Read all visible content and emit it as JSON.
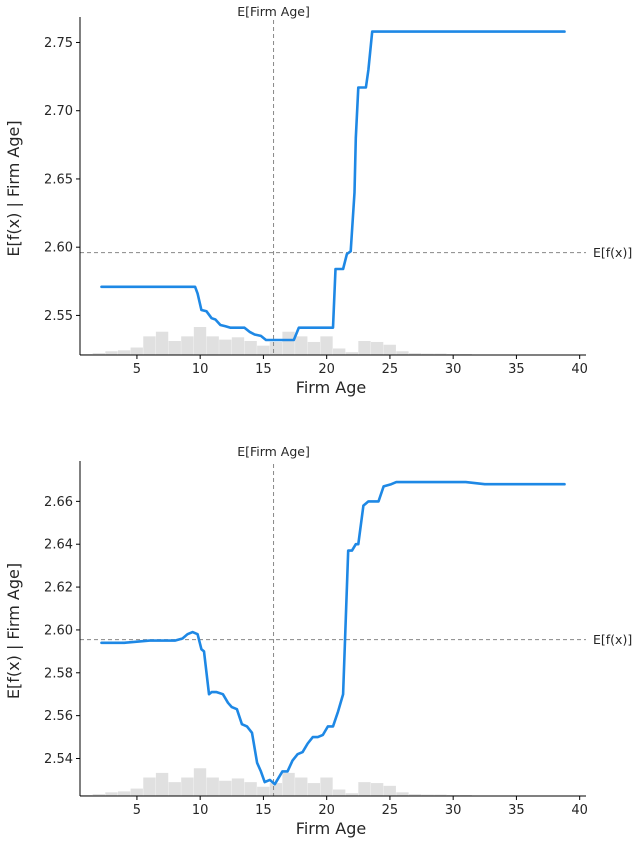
{
  "chart_data": [
    {
      "type": "line",
      "title": "",
      "xlabel": "Firm Age",
      "ylabel": "E[f(x) | Firm Age]",
      "xlim": [
        0.5,
        40.5
      ],
      "ylim": [
        2.521,
        2.765
      ],
      "x_ticks": [
        5,
        10,
        15,
        20,
        25,
        30,
        35,
        40
      ],
      "y_ticks": [
        2.55,
        2.6,
        2.65,
        2.7,
        2.75
      ],
      "y_tick_labels": [
        "2.55",
        "2.60",
        "2.65",
        "2.70",
        "2.75"
      ],
      "expected_x": 15.8,
      "expected_x_label": "E[Firm Age]",
      "expected_y": 2.596,
      "expected_y_label": "E[f(x)]",
      "colors": {
        "line": "#1e88e5",
        "hist": "#e0e0e0",
        "reference": "#888888"
      },
      "series": [
        {
          "x": [
            2.2,
            6,
            9.6,
            9.8,
            10.1,
            10.5,
            10.9,
            11.2,
            11.6,
            12,
            12.4,
            12.8,
            13.2,
            13.5,
            13.9,
            14.3,
            14.8,
            15.2,
            15.6,
            16,
            16.5,
            17,
            17.4,
            17.8,
            18.2,
            18.6,
            19,
            19.4,
            19.8,
            20.2,
            20.5,
            20.7,
            21,
            21.3,
            21.6,
            21.9,
            22.2,
            22.3,
            22.5,
            22.7,
            23.1,
            23.3,
            23.6,
            24.5,
            27,
            30,
            33,
            36,
            38.8
          ],
          "y": [
            2.571,
            2.571,
            2.571,
            2.566,
            2.554,
            2.553,
            2.548,
            2.547,
            2.543,
            2.542,
            2.541,
            2.541,
            2.541,
            2.541,
            2.538,
            2.536,
            2.535,
            2.532,
            2.532,
            2.532,
            2.532,
            2.532,
            2.532,
            2.541,
            2.541,
            2.541,
            2.541,
            2.541,
            2.541,
            2.541,
            2.541,
            2.584,
            2.584,
            2.584,
            2.595,
            2.597,
            2.64,
            2.68,
            2.717,
            2.717,
            2.717,
            2.73,
            2.758,
            2.758,
            2.758,
            2.758,
            2.758,
            2.758,
            2.758
          ]
        }
      ],
      "histogram": [
        0.02,
        0.04,
        0.08,
        0.1,
        0.16,
        0.4,
        0.5,
        0.3,
        0.4,
        0.6,
        0.4,
        0.33,
        0.38,
        0.3,
        0.2,
        0.28,
        0.5,
        0.4,
        0.28,
        0.4,
        0.14,
        0.06,
        0.3,
        0.28,
        0.22,
        0.08,
        0.04,
        0.03,
        0.03,
        0.02,
        0.02,
        0.01,
        0.01,
        0.01,
        0.01
      ]
    },
    {
      "type": "line",
      "title": "",
      "xlabel": "Firm Age",
      "ylabel": "E[f(x) | Firm Age]",
      "xlim": [
        0.5,
        40.5
      ],
      "ylim": [
        2.5225,
        2.6765
      ],
      "x_ticks": [
        5,
        10,
        15,
        20,
        25,
        30,
        35,
        40
      ],
      "y_ticks": [
        2.54,
        2.56,
        2.58,
        2.6,
        2.62,
        2.64,
        2.66
      ],
      "y_tick_labels": [
        "2.54",
        "2.56",
        "2.58",
        "2.60",
        "2.62",
        "2.64",
        "2.66"
      ],
      "expected_x": 15.8,
      "expected_x_label": "E[Firm Age]",
      "expected_y": 2.5955,
      "expected_y_label": "E[f(x)]",
      "colors": {
        "line": "#1e88e5",
        "hist": "#e0e0e0",
        "reference": "#888888"
      },
      "series": [
        {
          "x": [
            2.2,
            4,
            6,
            8,
            8.6,
            9,
            9.4,
            9.8,
            10.1,
            10.3,
            10.7,
            10.9,
            11.3,
            11.8,
            12.2,
            12.5,
            12.9,
            13.3,
            13.7,
            14.1,
            14.5,
            14.8,
            15.1,
            15.5,
            15.9,
            16.2,
            16.5,
            16.9,
            17.3,
            17.7,
            18.1,
            18.5,
            18.9,
            19.3,
            19.7,
            20.1,
            20.5,
            20.9,
            21.3,
            21.7,
            22.0,
            22.3,
            22.5,
            22.9,
            23.3,
            23.6,
            24.1,
            24.5,
            25.1,
            25.5,
            26.5,
            27.5,
            29,
            31,
            32.5,
            35,
            38.8
          ],
          "y": [
            2.594,
            2.594,
            2.595,
            2.595,
            2.596,
            2.598,
            2.599,
            2.598,
            2.591,
            2.59,
            2.57,
            2.571,
            2.571,
            2.57,
            2.566,
            2.564,
            2.563,
            2.556,
            2.555,
            2.552,
            2.538,
            2.534,
            2.529,
            2.53,
            2.528,
            2.531,
            2.534,
            2.534,
            2.539,
            2.542,
            2.543,
            2.547,
            2.55,
            2.55,
            2.551,
            2.555,
            2.555,
            2.562,
            2.57,
            2.637,
            2.637,
            2.64,
            2.64,
            2.658,
            2.66,
            2.66,
            2.66,
            2.667,
            2.668,
            2.669,
            2.669,
            2.669,
            2.669,
            2.669,
            2.668,
            2.668,
            2.668
          ]
        }
      ],
      "histogram": [
        0.02,
        0.04,
        0.08,
        0.1,
        0.16,
        0.4,
        0.5,
        0.3,
        0.4,
        0.6,
        0.4,
        0.33,
        0.38,
        0.3,
        0.2,
        0.28,
        0.5,
        0.4,
        0.28,
        0.4,
        0.14,
        0.06,
        0.3,
        0.28,
        0.22,
        0.08,
        0.04,
        0.03,
        0.03,
        0.02,
        0.02,
        0.01,
        0.01,
        0.01,
        0.01
      ]
    }
  ]
}
